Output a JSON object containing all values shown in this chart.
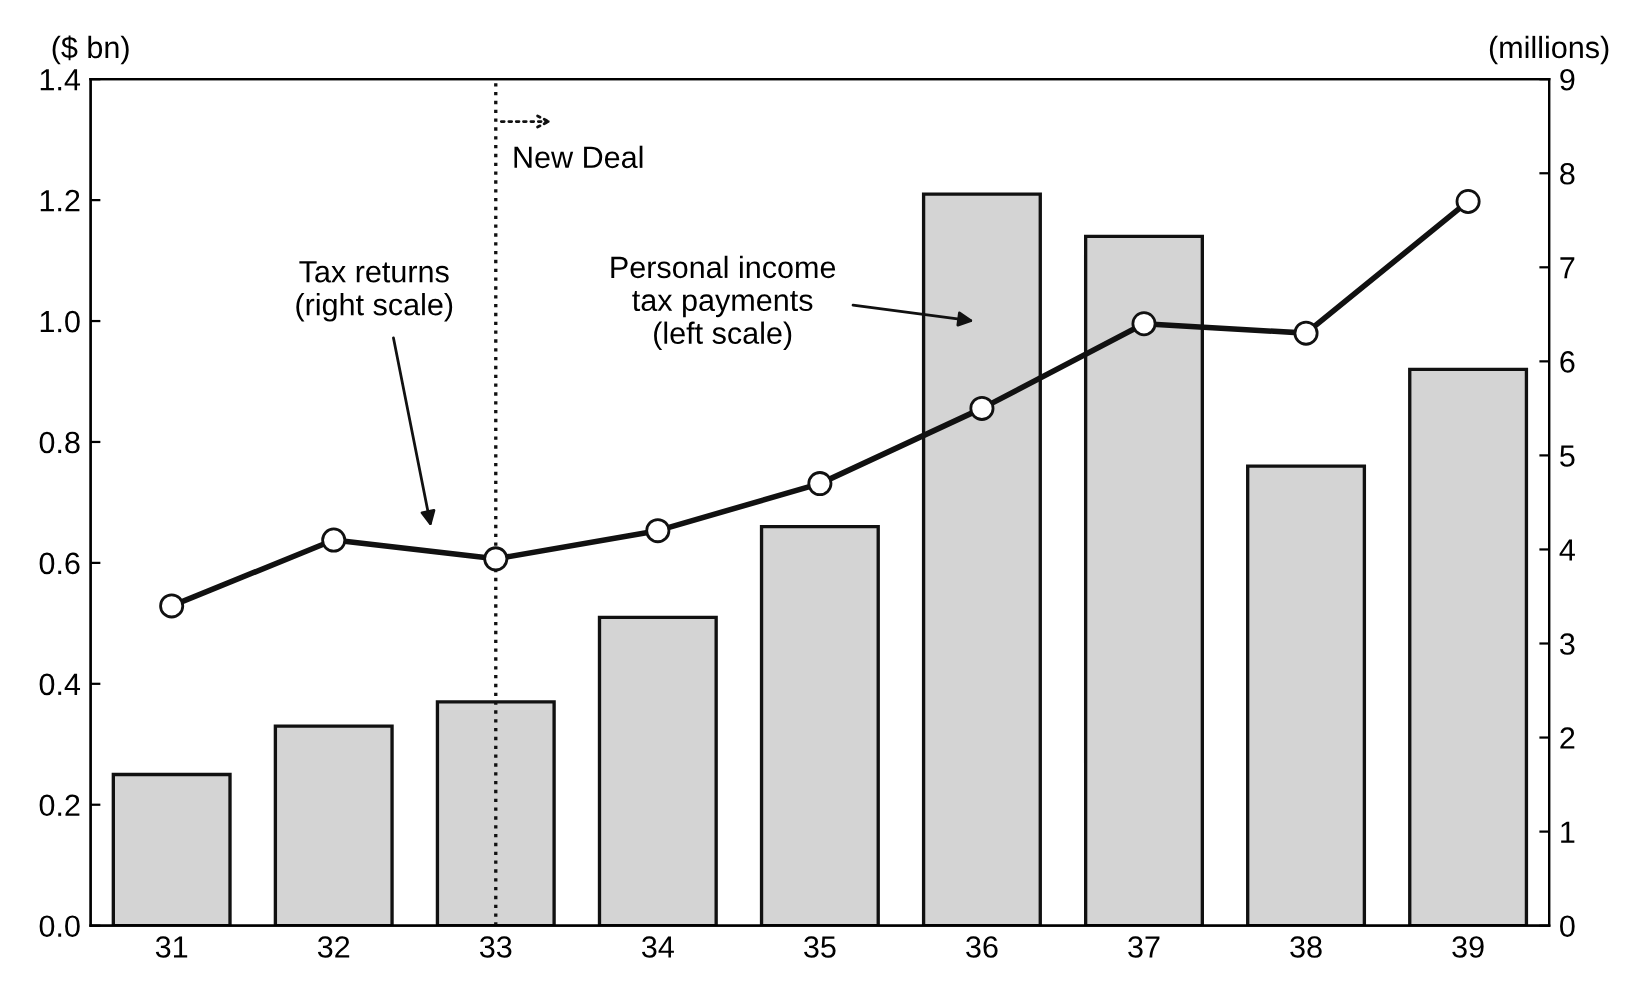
{
  "chart_data": {
    "type": "bar",
    "ylabel": "($ bn)",
    "y2label": "(millions)",
    "categories": [
      "31",
      "32",
      "33",
      "34",
      "35",
      "36",
      "37",
      "38",
      "39"
    ],
    "series": [
      {
        "color": "#d4d4d4",
        "values": [
          0.25,
          0.33,
          0.37,
          0.51,
          0.66,
          1.21,
          1.14,
          0.76,
          0.92
        ]
      },
      {
        "type": "line",
        "axis": "y2",
        "color": "#111111",
        "marker": "circle",
        "line_style": "solid",
        "values": [
          3.4,
          4.1,
          3.9,
          4.2,
          4.7,
          5.5,
          6.4,
          6.3,
          7.7
        ]
      }
    ],
    "ylim": [
      0,
      1.4
    ],
    "yticks": [
      {
        "value": 0,
        "label": "0.0"
      },
      0.2,
      0.4,
      0.6,
      0.8,
      {
        "value": 1,
        "label": "1.0"
      },
      1.2,
      1.4
    ],
    "y2lim": [
      0,
      9
    ],
    "y2ticks": [
      0,
      1,
      2,
      3,
      4,
      5,
      6,
      7,
      8,
      9
    ],
    "ref_lines": [
      {
        "axis": "x",
        "value": "33",
        "label": "New Deal",
        "line_style": "dotted",
        "color": "#111111"
      }
    ],
    "annotations": [
      "Tax returns\n(right scale)",
      "Personal income\ntax payments\n(left scale)"
    ],
    "grid": false
  }
}
